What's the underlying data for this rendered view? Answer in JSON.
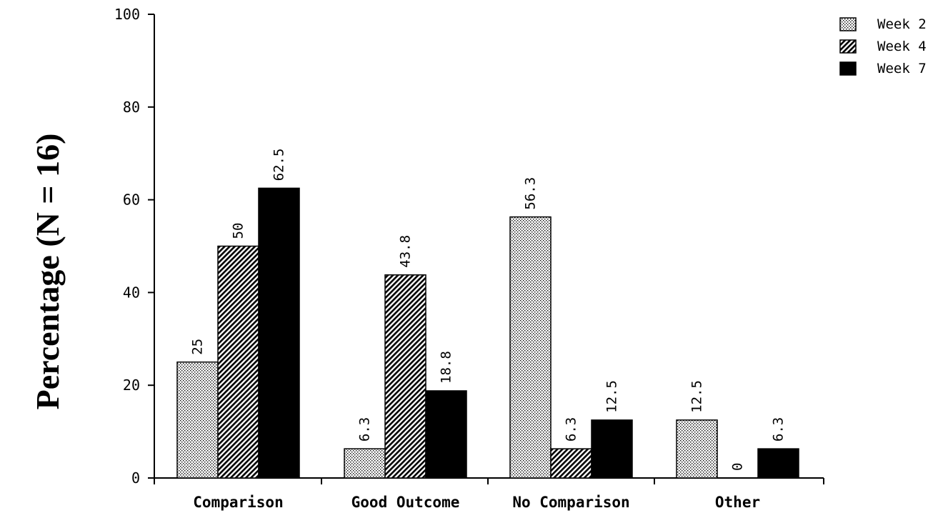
{
  "chart_data": {
    "type": "bar",
    "title": "",
    "xlabel": "",
    "ylabel": "Percentage (N = 16)",
    "ylim": [
      0,
      100
    ],
    "yticks": [
      0,
      20,
      40,
      60,
      80,
      100
    ],
    "categories": [
      "Comparison",
      "Good Outcome",
      "No Comparison",
      "Other"
    ],
    "series": [
      {
        "name": "Week 2",
        "pattern": "dots",
        "values": [
          25,
          6.3,
          56.3,
          12.5
        ],
        "labels": [
          "25",
          "6.3",
          "56.3",
          "12.5"
        ]
      },
      {
        "name": "Week 4",
        "pattern": "diagonal-hatch",
        "values": [
          50,
          43.8,
          6.3,
          0
        ],
        "labels": [
          "50",
          "43.8",
          "6.3",
          "0"
        ]
      },
      {
        "name": "Week 7",
        "pattern": "solid",
        "values": [
          62.5,
          18.8,
          12.5,
          6.3
        ],
        "labels": [
          "62.5",
          "18.8",
          "12.5",
          "6.3"
        ]
      }
    ],
    "legend": "top-right",
    "grid": false,
    "colors": {
      "bar_fill_dark": "#000000",
      "bar_fill_light": "#ffffff",
      "axis": "#000000"
    }
  }
}
